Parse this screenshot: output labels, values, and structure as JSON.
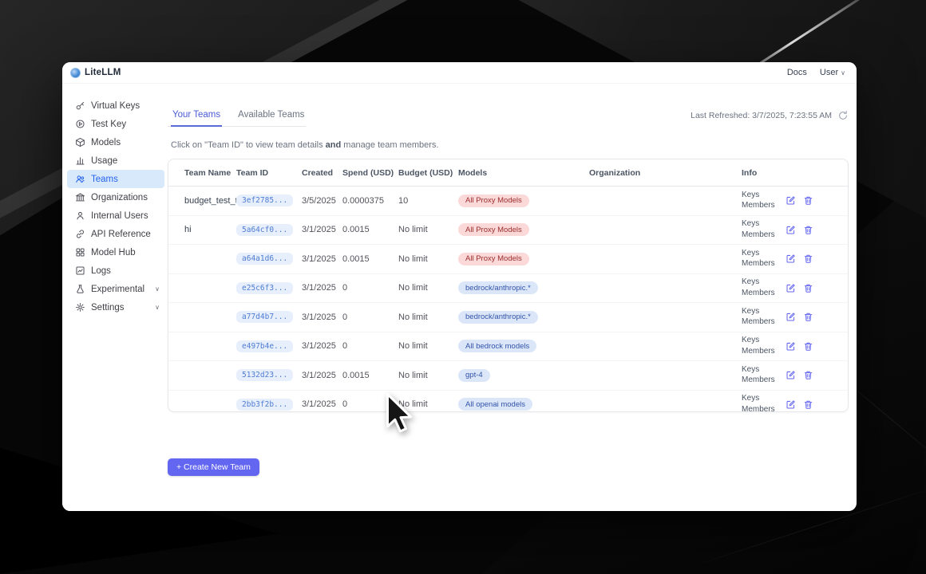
{
  "window": {
    "brand": "LiteLLM",
    "nav_docs": "Docs",
    "nav_user": "User"
  },
  "icons": {
    "refresh": "refresh-icon",
    "edit": "edit-icon",
    "delete": "trash-icon"
  },
  "sidebar": {
    "items": [
      {
        "label": "Virtual Keys",
        "icon": "key-icon",
        "active_class": "",
        "chevron": ""
      },
      {
        "label": "Test Key",
        "icon": "play-circle-icon",
        "active_class": "",
        "chevron": ""
      },
      {
        "label": "Models",
        "icon": "cube-icon",
        "active_class": "",
        "chevron": ""
      },
      {
        "label": "Usage",
        "icon": "bar-chart-icon",
        "active_class": "",
        "chevron": ""
      },
      {
        "label": "Teams",
        "icon": "users-icon",
        "active_class": "active",
        "chevron": ""
      },
      {
        "label": "Organizations",
        "icon": "building-icon",
        "active_class": "",
        "chevron": ""
      },
      {
        "label": "Internal Users",
        "icon": "user-icon",
        "active_class": "",
        "chevron": ""
      },
      {
        "label": "API Reference",
        "icon": "link-icon",
        "active_class": "",
        "chevron": ""
      },
      {
        "label": "Model Hub",
        "icon": "grid-icon",
        "active_class": "",
        "chevron": ""
      },
      {
        "label": "Logs",
        "icon": "logs-icon",
        "active_class": "",
        "chevron": ""
      },
      {
        "label": "Experimental",
        "icon": "flask-icon",
        "active_class": "",
        "chevron": "∨"
      },
      {
        "label": "Settings",
        "icon": "gear-icon",
        "active_class": "",
        "chevron": "∨"
      }
    ]
  },
  "page": {
    "tabs": [
      {
        "label": "Your Teams",
        "active_class": "active"
      },
      {
        "label": "Available Teams",
        "active_class": ""
      }
    ],
    "last_refreshed": "Last Refreshed: 3/7/2025, 7:23:55 AM",
    "description": {
      "part1": "Click on \"Team ID\" to view team details ",
      "bold": "and",
      "part2": " manage team members."
    },
    "create_button_label": "+ Create New Team"
  },
  "table": {
    "columns": [
      "Team Name",
      "Team ID",
      "Created",
      "Spend (USD)",
      "Budget (USD)",
      "Models",
      "Organization",
      "Info"
    ],
    "info_links": [
      "Keys",
      "Members"
    ],
    "rows": [
      {
        "team_name": "budget_test_team",
        "team_id": "3ef2785...",
        "created": "3/5/2025",
        "spend": "0.0000375",
        "budget": "10",
        "model": "All Proxy Models",
        "model_color": "red",
        "organization": ""
      },
      {
        "team_name": "hi",
        "team_id": "5a64cf0...",
        "created": "3/1/2025",
        "spend": "0.0015",
        "budget": "No limit",
        "model": "All Proxy Models",
        "model_color": "red",
        "organization": ""
      },
      {
        "team_name": "",
        "team_id": "a64a1d6...",
        "created": "3/1/2025",
        "spend": "0.0015",
        "budget": "No limit",
        "model": "All Proxy Models",
        "model_color": "red",
        "organization": ""
      },
      {
        "team_name": "",
        "team_id": "e25c6f3...",
        "created": "3/1/2025",
        "spend": "0",
        "budget": "No limit",
        "model": "bedrock/anthropic.*",
        "model_color": "blue",
        "organization": ""
      },
      {
        "team_name": "",
        "team_id": "a77d4b7...",
        "created": "3/1/2025",
        "spend": "0",
        "budget": "No limit",
        "model": "bedrock/anthropic.*",
        "model_color": "blue",
        "organization": ""
      },
      {
        "team_name": "",
        "team_id": "e497b4e...",
        "created": "3/1/2025",
        "spend": "0",
        "budget": "No limit",
        "model": "All bedrock models",
        "model_color": "blue",
        "organization": ""
      },
      {
        "team_name": "",
        "team_id": "5132d23...",
        "created": "3/1/2025",
        "spend": "0.0015",
        "budget": "No limit",
        "model": "gpt-4",
        "model_color": "blue",
        "organization": ""
      },
      {
        "team_name": "",
        "team_id": "2bb3f2b...",
        "created": "3/1/2025",
        "spend": "0",
        "budget": "No limit",
        "model": "All openai models",
        "model_color": "blue",
        "organization": ""
      }
    ]
  },
  "colors": {
    "accent": "#6366f1",
    "active_item_bg": "#d8e9fb",
    "active_item_text": "#2563eb",
    "badge_red_bg": "#fbd9d9",
    "badge_red_text": "#9b2c2c",
    "badge_blue_bg": "#dbe7f9",
    "badge_blue_text": "#3353a8",
    "tab_active": "#4a5bd4"
  }
}
